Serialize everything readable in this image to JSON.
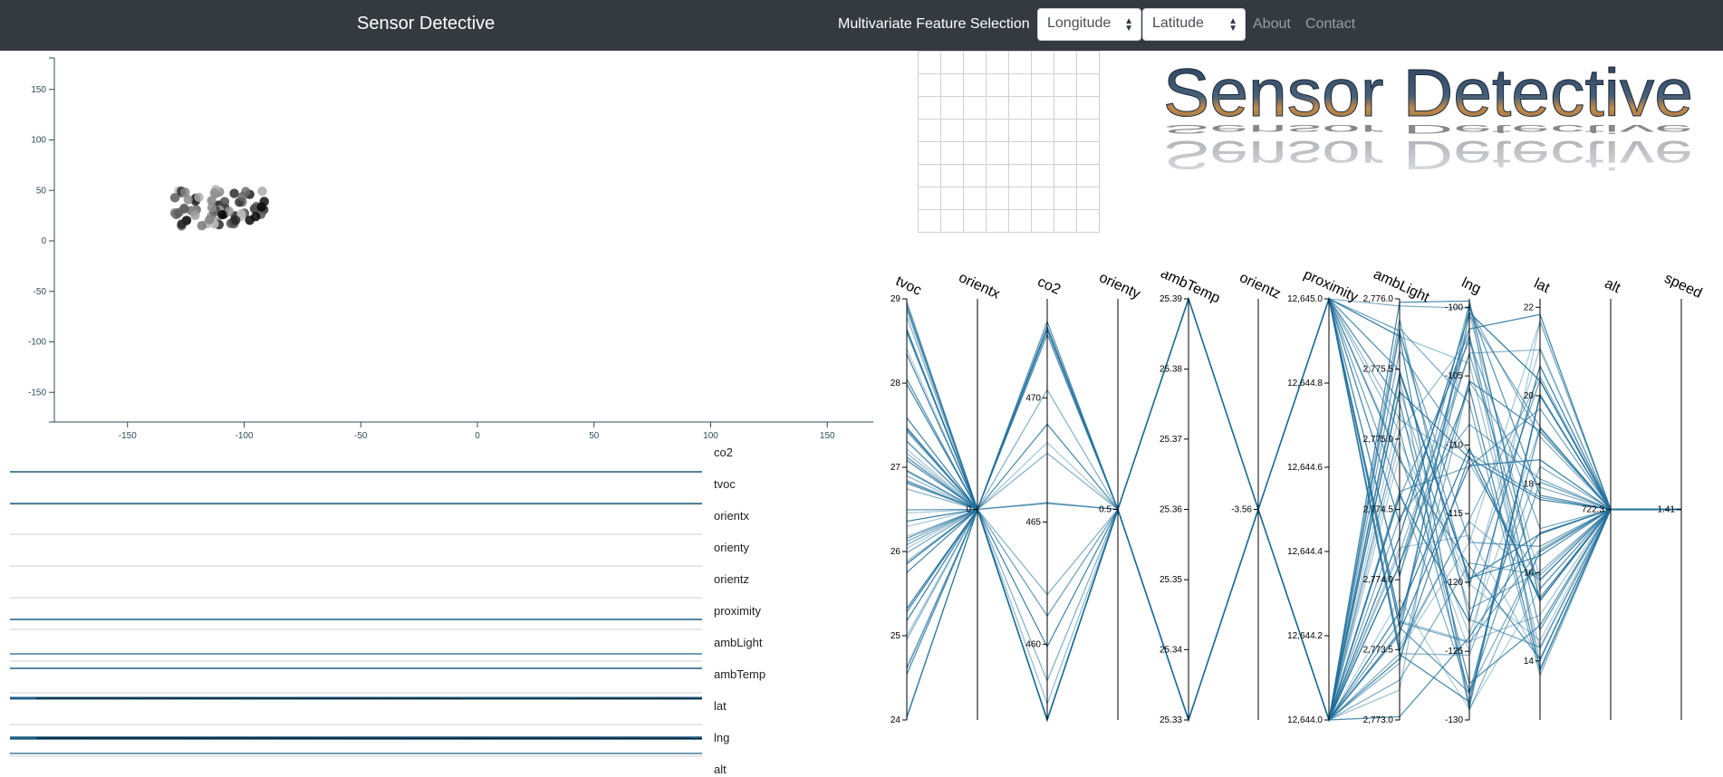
{
  "navbar": {
    "brand": "Sensor Detective",
    "feature_label": "Multivariate Feature Selection",
    "x_select": "Longitude",
    "y_select": "Latitude",
    "links": [
      "About",
      "Contact"
    ]
  },
  "logo_text": "Sensor Detective",
  "scatter": {
    "x_ticks": [
      -150,
      -100,
      -50,
      0,
      50,
      100,
      150
    ],
    "y_ticks": [
      150,
      100,
      50,
      0,
      -50,
      -100,
      -150
    ]
  },
  "sparklines": [
    "co2",
    "tvoc",
    "orientx",
    "orienty",
    "orientz",
    "proximity",
    "ambLight",
    "ambTemp",
    "lat",
    "lng",
    "alt"
  ],
  "parallel": {
    "axes": [
      {
        "name": "tvoc",
        "ticks": [
          "29",
          "28",
          "27",
          "26",
          "25",
          "24"
        ]
      },
      {
        "name": "orientx",
        "ticks": [
          "0"
        ]
      },
      {
        "name": "co2",
        "ticks": [
          "470",
          "465",
          "460"
        ]
      },
      {
        "name": "orienty",
        "ticks": [
          "0.5"
        ]
      },
      {
        "name": "ambTemp",
        "ticks": [
          "25.39",
          "25.38",
          "25.37",
          "25.36",
          "25.35",
          "25.34",
          "25.33"
        ]
      },
      {
        "name": "orientz",
        "ticks": [
          "-3.56"
        ]
      },
      {
        "name": "proximity",
        "ticks": [
          "12,645.0",
          "12,644.8",
          "12,644.6",
          "12,644.4",
          "12,644.2",
          "12,644.0"
        ]
      },
      {
        "name": "ambLight",
        "ticks": [
          "2,776.0",
          "2,775.5",
          "2,775.0",
          "2,774.5",
          "2,774.0",
          "2,773.5",
          "2,773.0"
        ]
      },
      {
        "name": "lng",
        "ticks": [
          "-100",
          "-105",
          "-110",
          "-115",
          "-120",
          "-125",
          "-130"
        ]
      },
      {
        "name": "lat",
        "ticks": [
          "22",
          "20",
          "18",
          "16",
          "14"
        ]
      },
      {
        "name": "alt",
        "ticks": [
          "722.3"
        ]
      },
      {
        "name": "speed",
        "ticks": [
          "1.41"
        ]
      }
    ]
  },
  "colors": {
    "navbar": "#343a40",
    "line": "#1f6f9a",
    "axis": "#2c4f5a"
  }
}
